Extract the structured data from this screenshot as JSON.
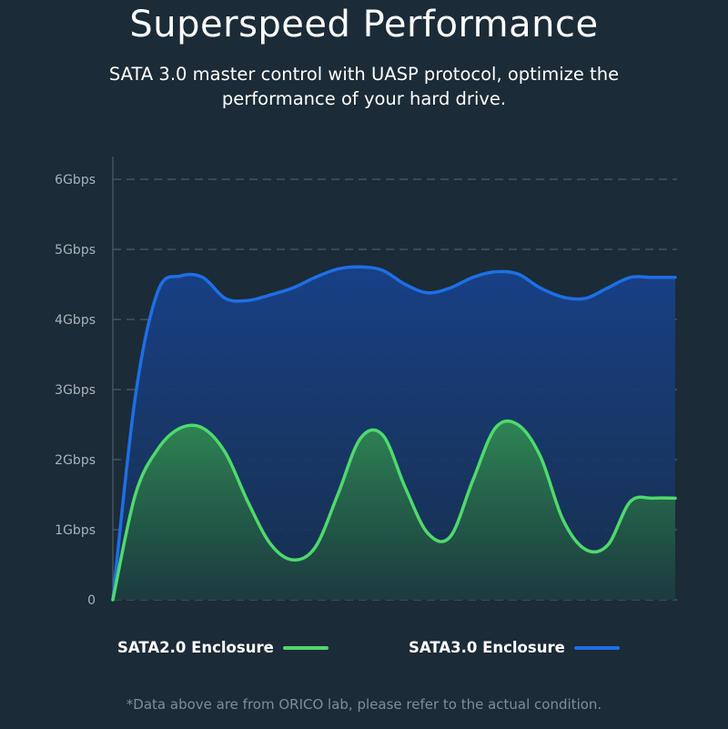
{
  "header": {
    "title": "Superspeed Performance",
    "subtitle_line1": "SATA 3.0 master control with UASP protocol, optimize the",
    "subtitle_line2": "performance of your hard drive."
  },
  "chart_data": {
    "type": "area",
    "title": "",
    "xlabel": "",
    "ylabel": "",
    "ylim": [
      0,
      6
    ],
    "yticks": [
      {
        "value": 0,
        "label": "0"
      },
      {
        "value": 1,
        "label": "1Gbps"
      },
      {
        "value": 2,
        "label": "2Gbps"
      },
      {
        "value": 3,
        "label": "3Gbps"
      },
      {
        "value": 4,
        "label": "4Gbps"
      },
      {
        "value": 5,
        "label": "5Gbps"
      },
      {
        "value": 6,
        "label": "6Gbps"
      }
    ],
    "xlim": [
      0,
      100
    ],
    "grid": true,
    "legend_position": "bottom",
    "series": [
      {
        "name": "SATA2.0 Enclosure",
        "color": "#4fd96c",
        "x": [
          0,
          4,
          8,
          12,
          16,
          20,
          24,
          28,
          32,
          36,
          40,
          44,
          48,
          52,
          56,
          60,
          64,
          68,
          72,
          76,
          80,
          84,
          88,
          92,
          96,
          100
        ],
        "y": [
          0,
          1.5,
          2.15,
          2.45,
          2.45,
          2.1,
          1.4,
          0.8,
          0.57,
          0.75,
          1.5,
          2.3,
          2.35,
          1.6,
          0.95,
          0.9,
          1.7,
          2.45,
          2.5,
          2.05,
          1.15,
          0.72,
          0.78,
          1.4,
          1.45,
          1.45
        ]
      },
      {
        "name": "SATA3.0 Enclosure",
        "color": "#1e6fe6",
        "x": [
          0,
          4,
          8,
          12,
          16,
          20,
          24,
          28,
          32,
          36,
          40,
          44,
          48,
          52,
          56,
          60,
          64,
          68,
          72,
          76,
          80,
          84,
          88,
          92,
          96,
          100
        ],
        "y": [
          0,
          2.9,
          4.4,
          4.62,
          4.6,
          4.3,
          4.27,
          4.35,
          4.45,
          4.6,
          4.72,
          4.75,
          4.7,
          4.5,
          4.38,
          4.45,
          4.6,
          4.68,
          4.65,
          4.45,
          4.32,
          4.3,
          4.45,
          4.6,
          4.6,
          4.6
        ]
      }
    ],
    "footnote": "*Data above are from ORICO lab, please refer to the actual condition."
  }
}
